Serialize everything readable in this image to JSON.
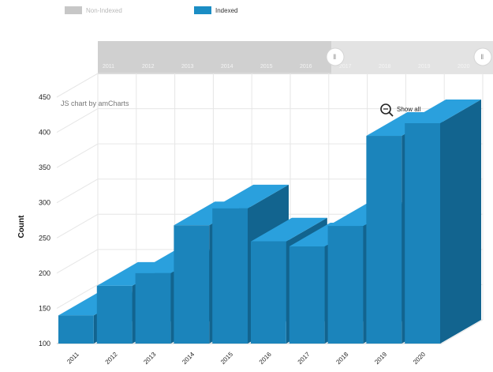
{
  "legend": {
    "items": [
      {
        "label": "Non-Indexed",
        "color": "#c7c7c7",
        "enabled": false
      },
      {
        "label": "Indexed",
        "color": "#1b8dc4",
        "enabled": true
      }
    ]
  },
  "credit": "JS chart by amCharts",
  "zoom_out_label": "Show all",
  "chart_data": {
    "type": "bar",
    "three_d": true,
    "categories": [
      "2011",
      "2012",
      "2013",
      "2014",
      "2015",
      "2016",
      "2017",
      "2018",
      "2019",
      "2020"
    ],
    "series": [
      {
        "name": "Indexed",
        "values": [
          140,
          182,
          200,
          268,
          292,
          245,
          238,
          267,
          395,
          413
        ]
      }
    ],
    "ylabel": "Count",
    "xlabel": "",
    "ylim": [
      100,
      450
    ],
    "yticks": [
      100,
      150,
      200,
      250,
      300,
      350,
      400,
      450
    ],
    "grid": true,
    "colors": {
      "bar_front": "#1b84bb",
      "bar_top": "#2aa0dd",
      "bar_side": "#12648f"
    },
    "scrollbar_tick_labels": [
      "2011",
      "2012",
      "2013",
      "2014",
      "2015",
      "2016",
      "2017",
      "2018",
      "2019",
      "2020"
    ]
  }
}
